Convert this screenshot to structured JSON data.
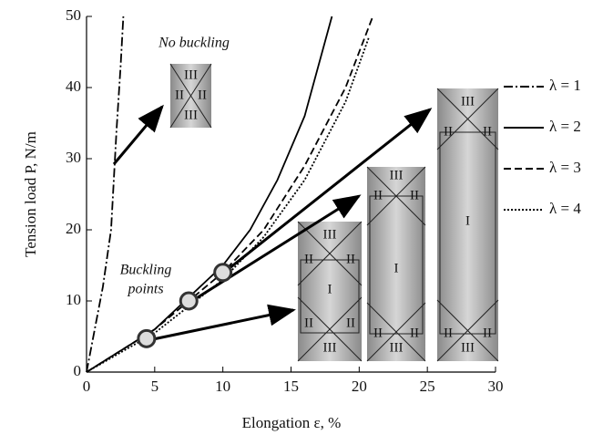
{
  "chart_data": {
    "type": "line",
    "xlabel": "Elongation ε, %",
    "ylabel": "Tension load P, N/m",
    "xlim": [
      0,
      30
    ],
    "xticks": [
      0,
      5,
      10,
      15,
      20,
      25,
      30
    ],
    "ylim": [
      0,
      50
    ],
    "yticks": [
      0,
      10,
      20,
      30,
      40,
      50
    ],
    "legend": "right",
    "series": [
      {
        "name": "λ = 1",
        "color": "#000000",
        "dash": "10,3,2,3",
        "x": [
          0,
          0.6,
          1.2,
          1.8,
          2.2,
          2.5,
          2.7
        ],
        "values": [
          0,
          6,
          12,
          20,
          34,
          43,
          50
        ]
      },
      {
        "name": "λ = 2",
        "color": "#000000",
        "dash": "none",
        "x": [
          0,
          5,
          10,
          12,
          14,
          16,
          18
        ],
        "values": [
          0,
          6,
          15,
          20,
          27,
          36,
          50
        ]
      },
      {
        "name": "λ = 3",
        "color": "#000000",
        "dash": "8,4",
        "x": [
          0,
          5,
          10,
          13,
          16,
          19,
          21
        ],
        "values": [
          0,
          6,
          14,
          20,
          29,
          40,
          50
        ]
      },
      {
        "name": "λ = 4",
        "color": "#000000",
        "dash": "2,2",
        "x": [
          0,
          5,
          10,
          13,
          16,
          19,
          20.7
        ],
        "values": [
          0,
          5.5,
          13,
          19,
          27,
          38,
          47
        ]
      }
    ],
    "buckling_points": {
      "x": [
        4.4,
        7.5,
        10
      ],
      "values": [
        4.7,
        10,
        14
      ]
    },
    "annotations": {
      "no_buckling": "No buckling",
      "buckling_points": [
        "Buckling",
        "points"
      ]
    },
    "insets": [
      {
        "labels": [
          "III",
          "II",
          "II",
          "III"
        ]
      },
      {
        "labels": [
          "III",
          "II",
          "II",
          "I",
          "II",
          "II",
          "III"
        ]
      },
      {
        "labels": [
          "III",
          "II",
          "II",
          "I",
          "II",
          "II",
          "III"
        ]
      },
      {
        "labels": [
          "III",
          "II",
          "II",
          "I",
          "II",
          "II",
          "III"
        ]
      }
    ]
  }
}
